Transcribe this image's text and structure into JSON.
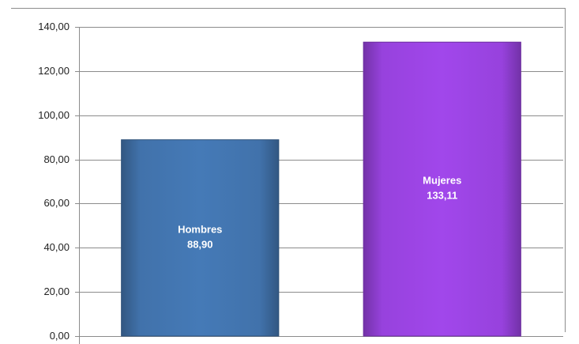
{
  "chart_data": {
    "type": "bar",
    "categories": [
      "Hombres",
      "Mujeres"
    ],
    "values": [
      88.9,
      133.11
    ],
    "value_labels": [
      "88,90",
      "133,11"
    ],
    "colors": [
      "#3e6da3",
      "#903fd2"
    ],
    "ylim": [
      0,
      140
    ],
    "yticks": [
      {
        "value": 0,
        "label": "0,00"
      },
      {
        "value": 20,
        "label": "20,00"
      },
      {
        "value": 40,
        "label": "40,00"
      },
      {
        "value": 60,
        "label": "60,00"
      },
      {
        "value": 80,
        "label": "80,00"
      },
      {
        "value": 100,
        "label": "100,00"
      },
      {
        "value": 120,
        "label": "120,00"
      },
      {
        "value": 140,
        "label": "140,00"
      }
    ],
    "grid": true
  }
}
